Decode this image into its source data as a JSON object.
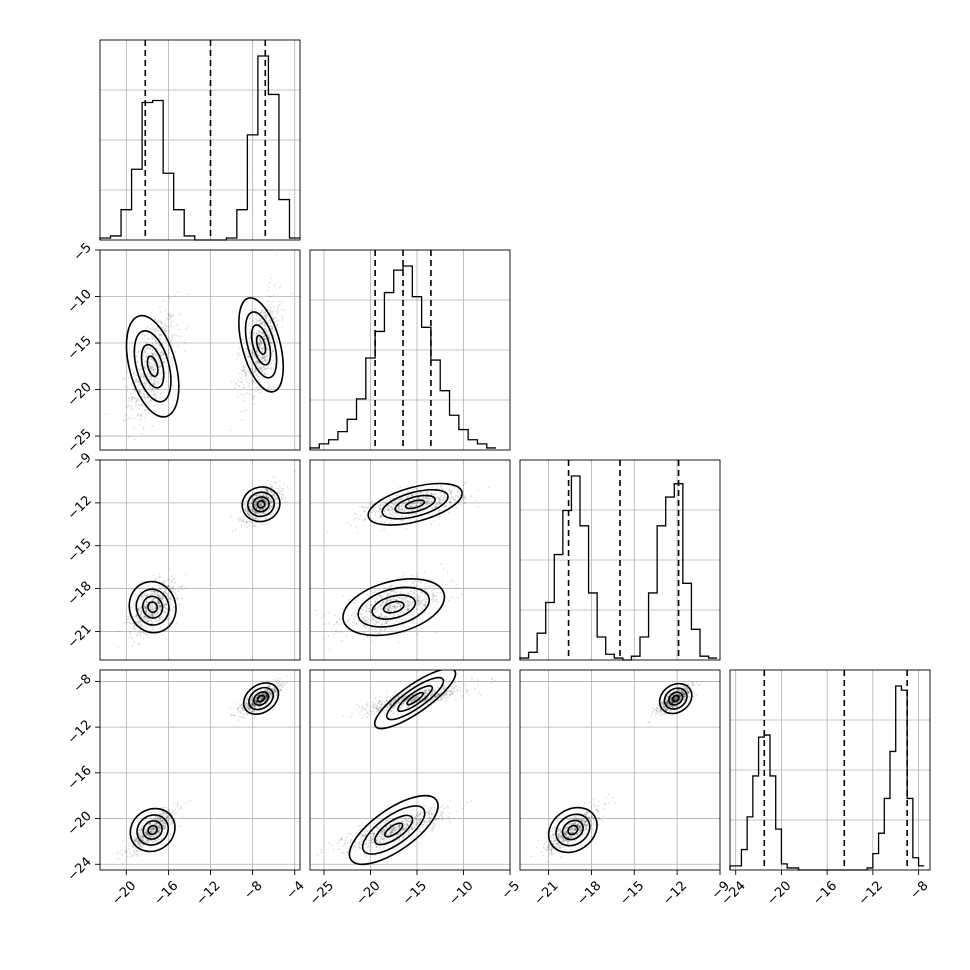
{
  "chart_data": {
    "type": "corner",
    "layout": "lower-triangular 4x4 grid; diagonal = 1D histograms with three dashed quantile lines; off-diagonal = 2D scatter density with contours",
    "colors": {
      "ink": "#000000",
      "grid": "#b0b0b0",
      "background": "#ffffff"
    },
    "grid": true,
    "parameters": [
      {
        "index": 0,
        "range": [
          -22.5,
          -3.5
        ],
        "ticks": [
          "−20",
          "−16",
          "−12",
          "−8",
          "−4"
        ],
        "tick_values": [
          -20,
          -16,
          -12,
          -8,
          -4
        ],
        "quantiles": [
          -18.2,
          -12.0,
          -6.8
        ],
        "histogram": {
          "bin_edges": [
            -22.5,
            -21.5,
            -20.5,
            -19.5,
            -18.5,
            -17.5,
            -16.5,
            -15.5,
            -14.5,
            -13.5,
            -12.5,
            -11.5,
            -10.5,
            -9.5,
            -8.5,
            -7.5,
            -6.5,
            -5.5,
            -4.5,
            -3.5
          ],
          "counts": [
            0.01,
            0.02,
            0.15,
            0.35,
            0.68,
            0.69,
            0.33,
            0.15,
            0.02,
            0.0,
            0.0,
            0.0,
            0.01,
            0.15,
            0.52,
            0.91,
            0.72,
            0.2,
            0.01
          ]
        }
      },
      {
        "index": 1,
        "range": [
          -26.5,
          -5.0
        ],
        "ticks": [
          "−25",
          "−20",
          "−15",
          "−10",
          "−5"
        ],
        "y_ticks": [
          "−5",
          "−10",
          "−15",
          "−20",
          "−25"
        ],
        "tick_values": [
          -25,
          -20,
          -15,
          -10,
          -5
        ],
        "quantiles": [
          -19.5,
          -16.5,
          -13.5
        ],
        "histogram": {
          "bin_edges": [
            -26.5,
            -25.5,
            -24.5,
            -23.5,
            -22.5,
            -21.5,
            -20.5,
            -19.5,
            -18.5,
            -17.5,
            -16.5,
            -15.5,
            -14.5,
            -13.5,
            -12.5,
            -11.5,
            -10.5,
            -9.5,
            -8.5,
            -7.5,
            -6.5
          ],
          "counts": [
            0.01,
            0.03,
            0.05,
            0.09,
            0.15,
            0.25,
            0.45,
            0.58,
            0.77,
            0.88,
            0.9,
            0.75,
            0.6,
            0.44,
            0.29,
            0.17,
            0.1,
            0.05,
            0.03,
            0.01
          ]
        }
      },
      {
        "index": 2,
        "range": [
          -23.0,
          -9.0
        ],
        "ticks": [
          "−21",
          "−18",
          "−15",
          "−12",
          "−9"
        ],
        "y_ticks": [
          "−9",
          "−12",
          "−15",
          "−18",
          "−21"
        ],
        "tick_values": [
          -21,
          -18,
          -15,
          -12,
          -9
        ],
        "quantiles": [
          -19.6,
          -16.0,
          -11.9
        ],
        "histogram": {
          "bin_edges": [
            -23.0,
            -22.4,
            -21.8,
            -21.2,
            -20.6,
            -20.0,
            -19.4,
            -18.8,
            -18.2,
            -17.6,
            -17.0,
            -16.4,
            -15.8,
            -15.2,
            -14.6,
            -14.0,
            -13.4,
            -12.8,
            -12.2,
            -11.6,
            -11.0,
            -10.4,
            -9.8,
            -9.2
          ],
          "counts": [
            0.01,
            0.04,
            0.14,
            0.3,
            0.55,
            0.78,
            0.96,
            0.7,
            0.35,
            0.12,
            0.03,
            0.01,
            0.0,
            0.02,
            0.12,
            0.35,
            0.7,
            0.85,
            0.92,
            0.4,
            0.16,
            0.02,
            0.01
          ]
        }
      },
      {
        "index": 3,
        "range": [
          -24.5,
          -7.0
        ],
        "ticks": [
          "−24",
          "−20",
          "−16",
          "−12",
          "−8"
        ],
        "y_ticks": [
          "−8",
          "−12",
          "−16",
          "−20",
          "−24"
        ],
        "tick_values": [
          -24,
          -20,
          -16,
          -12,
          -8
        ],
        "quantiles": [
          -21.5,
          -14.5,
          -9.0
        ],
        "histogram": {
          "bin_edges": [
            -24.5,
            -24.0,
            -23.5,
            -23.0,
            -22.5,
            -22.0,
            -21.5,
            -21.0,
            -20.5,
            -20.0,
            -19.5,
            -19.0,
            -18.5,
            -18.0,
            -17.5,
            -17.0,
            -16.5,
            -16.0,
            -15.5,
            -15.0,
            -14.5,
            -14.0,
            -13.5,
            -13.0,
            -12.5,
            -12.0,
            -11.5,
            -11.0,
            -10.5,
            -10.0,
            -9.5,
            -9.0,
            -8.5,
            -8.0,
            -7.5
          ],
          "counts": [
            0.02,
            0.02,
            0.1,
            0.26,
            0.46,
            0.65,
            0.66,
            0.46,
            0.2,
            0.03,
            0.01,
            0.01,
            0.0,
            0.0,
            0.0,
            0.0,
            0.0,
            0.0,
            0.0,
            0.0,
            0.0,
            0.0,
            0.0,
            0.0,
            0.01,
            0.08,
            0.18,
            0.35,
            0.58,
            0.9,
            0.88,
            0.35,
            0.06,
            0.02
          ]
        }
      }
    ],
    "modes": [
      {
        "center": [
          -17.5,
          -17.5,
          -19.3,
          -21.0
        ],
        "spread": [
          1.1,
          2.8,
          0.9,
          0.9
        ]
      },
      {
        "center": [
          -7.2,
          -15.2,
          -12.1,
          -9.5
        ],
        "spread": [
          0.9,
          2.6,
          0.6,
          0.6
        ]
      }
    ]
  }
}
